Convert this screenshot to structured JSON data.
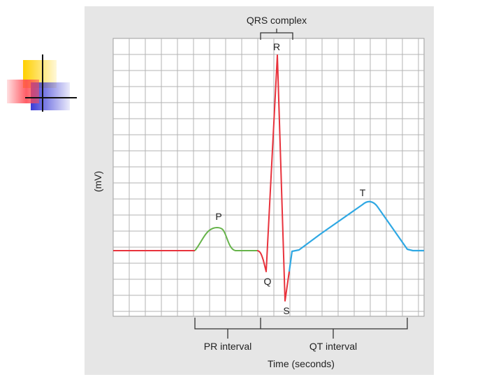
{
  "diagram": {
    "qrs_label": "QRS complex",
    "wave_labels": {
      "p": "P",
      "q": "Q",
      "r": "R",
      "s": "S",
      "t": "T"
    },
    "y_axis_label": "(mV)",
    "x_axis_label": "Time (seconds)",
    "pr_interval_label": "PR interval",
    "qt_interval_label": "QT interval",
    "colors": {
      "panel_background": "#e6e6e6",
      "grid_background": "#ffffff",
      "grid_lines": "#b3b3b3",
      "baseline_and_qrs": "#e8323c",
      "p_wave": "#66b34a",
      "st_and_t_wave": "#2fa8e3",
      "deco_yellow": "#ffd000",
      "deco_red": "#ff4b55",
      "deco_blue": "#3a3bd6"
    },
    "icons": [
      "decorative-squares-icon"
    ]
  }
}
